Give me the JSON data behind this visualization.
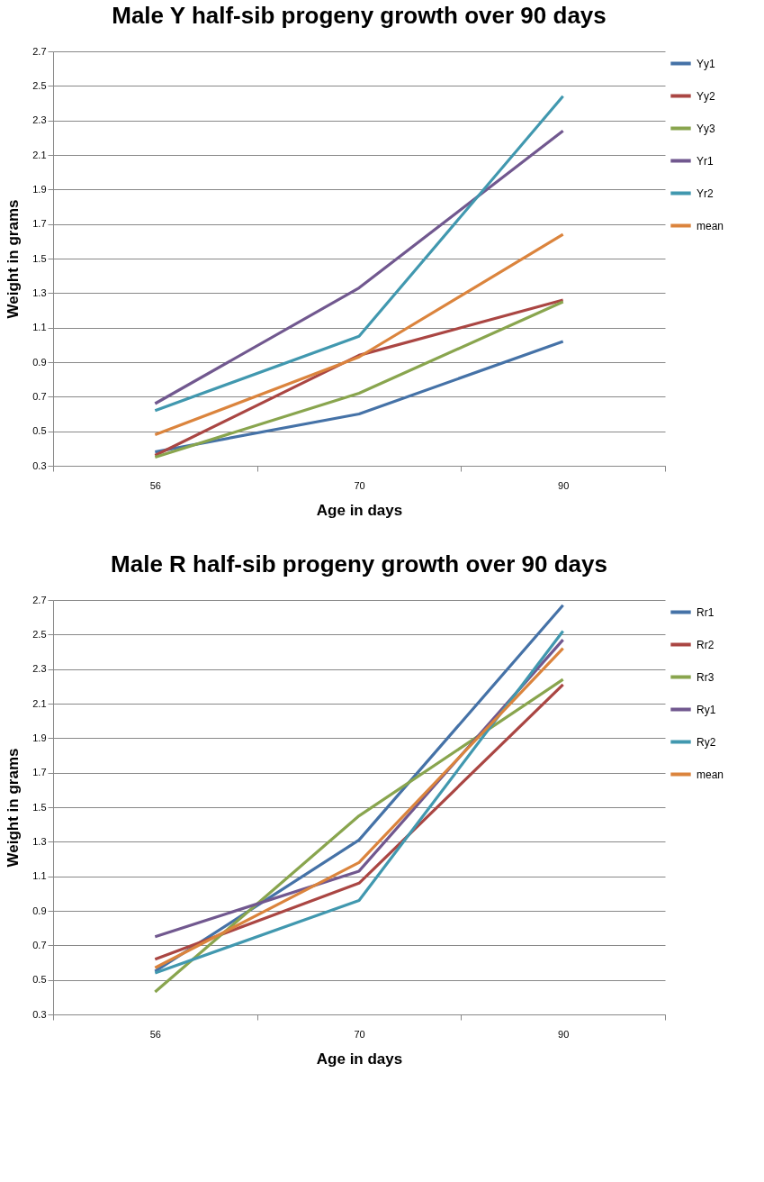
{
  "chart_data": [
    {
      "type": "line",
      "title": "Male Y half-sib progeny growth over 90 days",
      "xlabel": "Age in days",
      "ylabel": "Weight in grams",
      "categories": [
        "56",
        "70",
        "90"
      ],
      "ylim": [
        0.3,
        2.7
      ],
      "yticks": [
        0.3,
        0.5,
        0.7,
        0.9,
        1.1,
        1.3,
        1.5,
        1.7,
        1.9,
        2.1,
        2.3,
        2.5,
        2.7
      ],
      "grid": "y",
      "legend": "right",
      "marker": "none",
      "line_style": "solid",
      "series": [
        {
          "name": "Yy1",
          "color": "#4572a7",
          "values": [
            0.38,
            0.6,
            1.02
          ]
        },
        {
          "name": "Yy2",
          "color": "#aa4643",
          "values": [
            0.36,
            0.94,
            1.26
          ]
        },
        {
          "name": "Yy3",
          "color": "#89a54e",
          "values": [
            0.35,
            0.72,
            1.25
          ]
        },
        {
          "name": "Yr1",
          "color": "#71588f",
          "values": [
            0.66,
            1.33,
            2.24
          ]
        },
        {
          "name": "Yr2",
          "color": "#4198af",
          "values": [
            0.62,
            1.05,
            2.44
          ]
        },
        {
          "name": "mean",
          "color": "#db843d",
          "values": [
            0.48,
            0.93,
            1.64
          ]
        }
      ]
    },
    {
      "type": "line",
      "title": "Male R half-sib progeny growth over 90 days",
      "xlabel": "Age in days",
      "ylabel": "Weight in grams",
      "categories": [
        "56",
        "70",
        "90"
      ],
      "ylim": [
        0.3,
        2.7
      ],
      "yticks": [
        0.3,
        0.5,
        0.7,
        0.9,
        1.1,
        1.3,
        1.5,
        1.7,
        1.9,
        2.1,
        2.3,
        2.5,
        2.7
      ],
      "grid": "y",
      "legend": "right",
      "marker": "none",
      "line_style": "solid",
      "series": [
        {
          "name": "Rr1",
          "color": "#4572a7",
          "values": [
            0.55,
            1.31,
            2.67
          ]
        },
        {
          "name": "Rr2",
          "color": "#aa4643",
          "values": [
            0.62,
            1.06,
            2.21
          ]
        },
        {
          "name": "Rr3",
          "color": "#89a54e",
          "values": [
            0.43,
            1.45,
            2.24
          ]
        },
        {
          "name": "Ry1",
          "color": "#71588f",
          "values": [
            0.75,
            1.13,
            2.47
          ]
        },
        {
          "name": "Ry2",
          "color": "#4198af",
          "values": [
            0.54,
            0.96,
            2.52
          ]
        },
        {
          "name": "mean",
          "color": "#db843d",
          "values": [
            0.57,
            1.18,
            2.42
          ]
        }
      ]
    }
  ]
}
